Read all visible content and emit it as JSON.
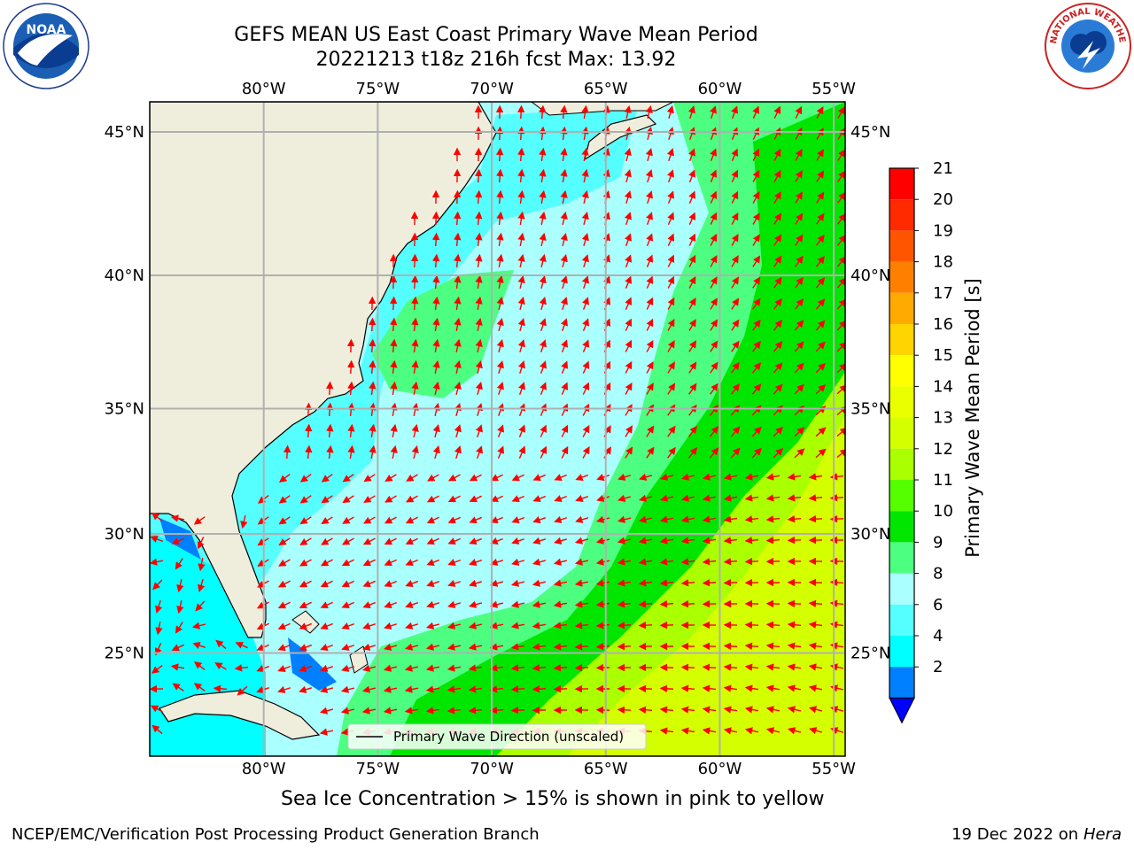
{
  "title": {
    "line1": "GEFS MEAN US East Coast Primary Wave Mean Period",
    "line2": "20221213 t18z 216h fcst   Max: 13.92"
  },
  "map": {
    "lon_ticks_top": [
      "80°W",
      "75°W",
      "70°W",
      "65°W",
      "60°W",
      "55°W"
    ],
    "lon_ticks_bottom": [
      "80°W",
      "75°W",
      "70°W",
      "65°W",
      "60°W",
      "55°W"
    ],
    "lat_ticks_left": [
      "45°N",
      "40°N",
      "35°N",
      "30°N",
      "25°N"
    ],
    "lat_ticks_right": [
      "45°N",
      "40°N",
      "35°N",
      "30°N",
      "25°N"
    ],
    "lon_values": [
      -80,
      -75,
      -70,
      -65,
      -60,
      -55
    ],
    "lat_values": [
      45,
      40,
      35,
      30,
      25
    ],
    "lon_range": [
      -85,
      -54.5
    ],
    "lat_range": [
      20.5,
      46
    ],
    "legend_label": "Primary Wave Direction (unscaled)",
    "land_color": "#efeedd",
    "vector_color": "#ff0000"
  },
  "colorbar": {
    "label": "Primary Wave Mean Period [s]",
    "ticks": [
      "21",
      "20",
      "19",
      "18",
      "17",
      "16",
      "15",
      "14",
      "13",
      "12",
      "11",
      "10",
      "9",
      "8",
      "6",
      "4",
      "2"
    ],
    "colors": [
      "#fe0000",
      "#ff2a00",
      "#ff5500",
      "#ff8000",
      "#ffaa00",
      "#ffd400",
      "#ffff00",
      "#eaff00",
      "#d4ff00",
      "#aaff00",
      "#55ff00",
      "#00e600",
      "#4dff80",
      "#aaffff",
      "#55ffff",
      "#00ffff",
      "#0080ff"
    ],
    "underflow_color": "#0000ff"
  },
  "subtitle": "Sea Ice Concentration > 15% is shown in pink to yellow",
  "footer": {
    "credit": "NCEP/EMC/Verification Post Processing Product Generation Branch",
    "date": "19 Dec 2022 on",
    "machine": "Hera"
  },
  "logos": {
    "noaa": "NOAA",
    "nws": "NATIONAL WEATHER SERVICE"
  }
}
